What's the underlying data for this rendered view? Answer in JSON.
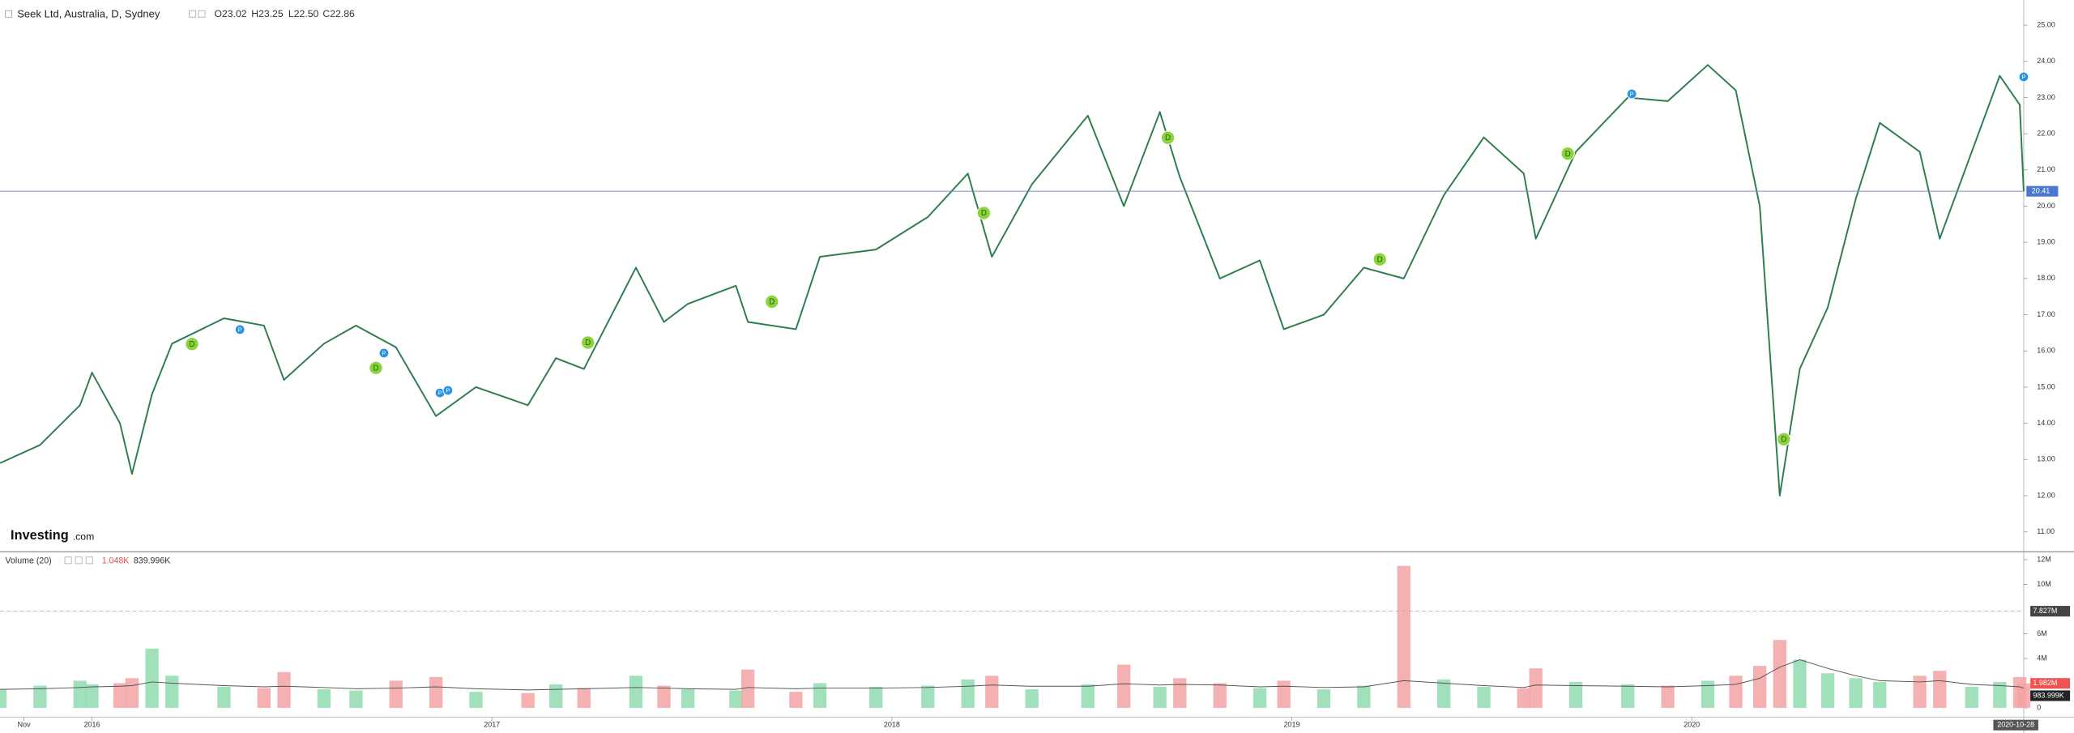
{
  "chart_data": {
    "type": "line",
    "title": "Seek Ltd, Australia, D, Sydney",
    "ohlc": [
      "O23.02",
      "H23.25",
      "L22.50",
      "C22.86"
    ],
    "volume_header": [
      "1.048K",
      "839.996K"
    ],
    "brand": [
      "Investing",
      ".com"
    ],
    "xlim": [
      2015.77,
      2020.83
    ],
    "xticks": [
      {
        "value": 2015.83,
        "label": "Nov"
      },
      2016,
      2017,
      2018,
      2019,
      2020
    ],
    "current_date": {
      "value": 2020.83,
      "label": "2020-10-28"
    },
    "ylim": [
      11,
      25
    ],
    "yticks": [
      {
        "value": 11,
        "label": "11.00"
      },
      {
        "value": 12,
        "label": "12.00"
      },
      {
        "value": 13,
        "label": "13.00"
      },
      {
        "value": 14,
        "label": "14.00"
      },
      {
        "value": 15,
        "label": "15.00"
      },
      {
        "value": 16,
        "label": "16.00"
      },
      {
        "value": 17,
        "label": "17.00"
      },
      {
        "value": 18,
        "label": "18.00"
      },
      {
        "value": 19,
        "label": "19.00"
      },
      {
        "value": 20,
        "label": "20.00"
      },
      {
        "value": 21,
        "label": "21.00"
      },
      {
        "value": 22,
        "label": "22.00"
      },
      {
        "value": 23,
        "label": "23.00"
      },
      {
        "value": 24,
        "label": "24.00"
      },
      {
        "value": 25,
        "label": "25.00"
      }
    ],
    "last_price": {
      "value": 20.41,
      "label": "20.41"
    },
    "y2lim": [
      0,
      12000000
    ],
    "y2ticks": [
      0,
      {
        "value": 4000000,
        "label": "4M"
      },
      {
        "value": 6000000,
        "label": "6M"
      },
      {
        "value": 10000000,
        "label": "10M"
      },
      {
        "value": 12000000,
        "label": "12M"
      }
    ],
    "volume_badges": [
      {
        "value": 7827000,
        "label": "7.827M"
      },
      {
        "value": 1982000,
        "label": "1.982M"
      },
      {
        "value": 983999,
        "label": "983.999K"
      }
    ],
    "up_color": "#8fdcb0",
    "down_color": "#f3a3a3",
    "x": [
      2015.77,
      2015.87,
      2015.97,
      2016.0,
      2016.07,
      2016.1,
      2016.15,
      2016.2,
      2016.33,
      2016.43,
      2016.48,
      2016.58,
      2016.66,
      2016.76,
      2016.86,
      2016.96,
      2017.09,
      2017.16,
      2017.23,
      2017.36,
      2017.43,
      2017.49,
      2017.61,
      2017.64,
      2017.76,
      2017.82,
      2017.96,
      2018.09,
      2018.19,
      2018.25,
      2018.35,
      2018.49,
      2018.58,
      2018.67,
      2018.72,
      2018.82,
      2018.92,
      2018.98,
      2019.08,
      2019.18,
      2019.28,
      2019.38,
      2019.48,
      2019.58,
      2019.61,
      2019.71,
      2019.84,
      2019.94,
      2020.04,
      2020.11,
      2020.17,
      2020.22,
      2020.27,
      2020.34,
      2020.41,
      2020.47,
      2020.57,
      2020.62,
      2020.7,
      2020.77,
      2020.82,
      2020.83
    ],
    "series": [
      {
        "color": "#2e7d4f",
        "values": [
          12.9,
          13.4,
          14.5,
          15.4,
          14.0,
          12.6,
          14.8,
          16.2,
          16.9,
          16.7,
          15.2,
          16.2,
          16.7,
          16.1,
          14.2,
          15.0,
          14.5,
          15.8,
          15.5,
          18.3,
          16.8,
          17.3,
          17.8,
          16.8,
          16.6,
          18.6,
          18.8,
          19.7,
          20.9,
          18.6,
          20.6,
          22.5,
          20.0,
          22.6,
          20.8,
          18.0,
          18.5,
          16.6,
          17.0,
          18.3,
          18.0,
          20.3,
          21.9,
          20.9,
          19.1,
          21.5,
          23.0,
          22.9,
          23.9,
          23.2,
          20.0,
          12.0,
          15.5,
          17.2,
          20.2,
          22.3,
          21.5,
          19.1,
          21.5,
          23.6,
          22.8,
          20.41
        ]
      },
      {
        "name": "Volume (20)",
        "axis": "y2",
        "values": [
          1500000,
          1800000,
          2200000,
          1900000,
          2000000,
          2400000,
          4800000,
          2600000,
          1700000,
          1600000,
          2900000,
          1500000,
          1400000,
          2200000,
          2500000,
          1300000,
          1200000,
          1900000,
          1600000,
          2600000,
          1800000,
          1500000,
          1400000,
          3100000,
          1300000,
          2000000,
          1700000,
          1800000,
          2300000,
          2600000,
          1500000,
          1900000,
          3500000,
          1700000,
          2400000,
          2000000,
          1600000,
          2200000,
          1500000,
          1800000,
          11500000,
          2300000,
          1700000,
          1600000,
          3200000,
          2100000,
          1900000,
          1800000,
          2200000,
          2600000,
          3400000,
          5500000,
          3900000,
          2800000,
          2400000,
          2100000,
          2600000,
          3000000,
          1700000,
          2100000,
          2500000,
          1982000
        ]
      },
      {
        "axis": "y2",
        "color": "#555555",
        "values": [
          1500000,
          1550000,
          1650000,
          1700000,
          1750000,
          1800000,
          2100000,
          2000000,
          1800000,
          1700000,
          1750000,
          1650000,
          1550000,
          1600000,
          1700000,
          1550000,
          1450000,
          1500000,
          1550000,
          1650000,
          1600000,
          1550000,
          1500000,
          1650000,
          1550000,
          1600000,
          1600000,
          1650000,
          1750000,
          1850000,
          1750000,
          1750000,
          1950000,
          1850000,
          1900000,
          1850000,
          1700000,
          1750000,
          1650000,
          1700000,
          2200000,
          2000000,
          1800000,
          1650000,
          1850000,
          1800000,
          1750000,
          1700000,
          1800000,
          1900000,
          2400000,
          3300000,
          3900000,
          3200000,
          2600000,
          2200000,
          2100000,
          2200000,
          1900000,
          1800000,
          1700000,
          1600000
        ]
      }
    ],
    "event_colors": {
      "D": "#8bd43c",
      "P": "#2a93e6"
    },
    "events": [
      {
        "label": "D",
        "x": 2016.25,
        "y": 16.19
      },
      {
        "label": "D",
        "x": 2016.71,
        "y": 15.53
      },
      {
        "label": "D",
        "x": 2017.24,
        "y": 16.23
      },
      {
        "label": "D",
        "x": 2017.7,
        "y": 17.36
      },
      {
        "label": "D",
        "x": 2018.23,
        "y": 19.81
      },
      {
        "label": "D",
        "x": 2018.69,
        "y": 21.89
      },
      {
        "label": "D",
        "x": 2019.22,
        "y": 18.53
      },
      {
        "label": "D",
        "x": 2019.69,
        "y": 21.45
      },
      {
        "label": "D",
        "x": 2020.23,
        "y": 13.56
      },
      {
        "label": "P",
        "x": 2016.37,
        "y": 16.59
      },
      {
        "label": "P",
        "x": 2016.73,
        "y": 15.94
      },
      {
        "label": "P",
        "x": 2016.87,
        "y": 14.84
      },
      {
        "label": "P",
        "x": 2016.89,
        "y": 14.91
      },
      {
        "label": "P",
        "x": 2019.85,
        "y": 23.1
      },
      {
        "label": "P",
        "x": 2020.83,
        "y": 23.57
      }
    ]
  }
}
